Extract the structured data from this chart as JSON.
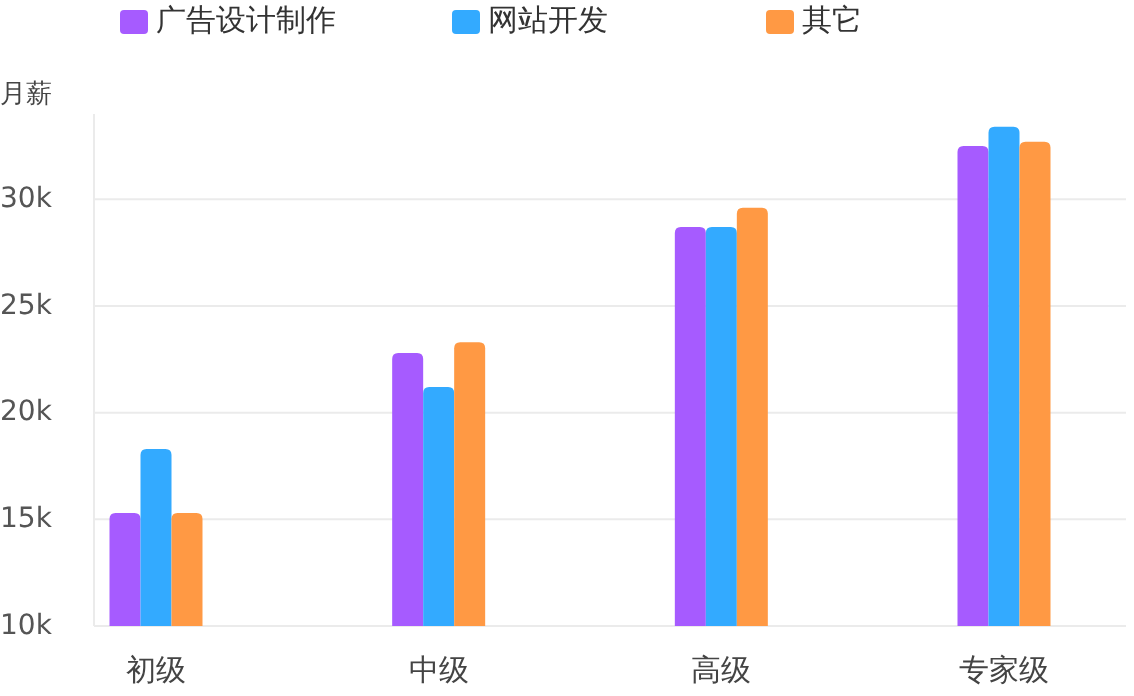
{
  "chart_data": {
    "type": "bar",
    "ylabel": "月薪",
    "categories": [
      "初级",
      "中级",
      "高级",
      "专家级"
    ],
    "series": [
      {
        "name": "广告设计制作",
        "color": "#a65bff",
        "values": [
          15.3,
          22.8,
          28.7,
          32.5
        ]
      },
      {
        "name": "网站开发",
        "color": "#33aaff",
        "values": [
          18.3,
          21.2,
          28.7,
          33.4
        ]
      },
      {
        "name": "其它",
        "color": "#ff9944",
        "values": [
          15.3,
          23.3,
          29.6,
          32.7
        ]
      }
    ],
    "ylim": [
      10,
      34
    ],
    "yticks": [
      {
        "value": 10,
        "label": "10k"
      },
      {
        "value": 15,
        "label": "15k"
      },
      {
        "value": 20,
        "label": "20k"
      },
      {
        "value": 25,
        "label": "25k"
      },
      {
        "value": 30,
        "label": "30k"
      }
    ],
    "grid": "y",
    "legend": "top left"
  }
}
